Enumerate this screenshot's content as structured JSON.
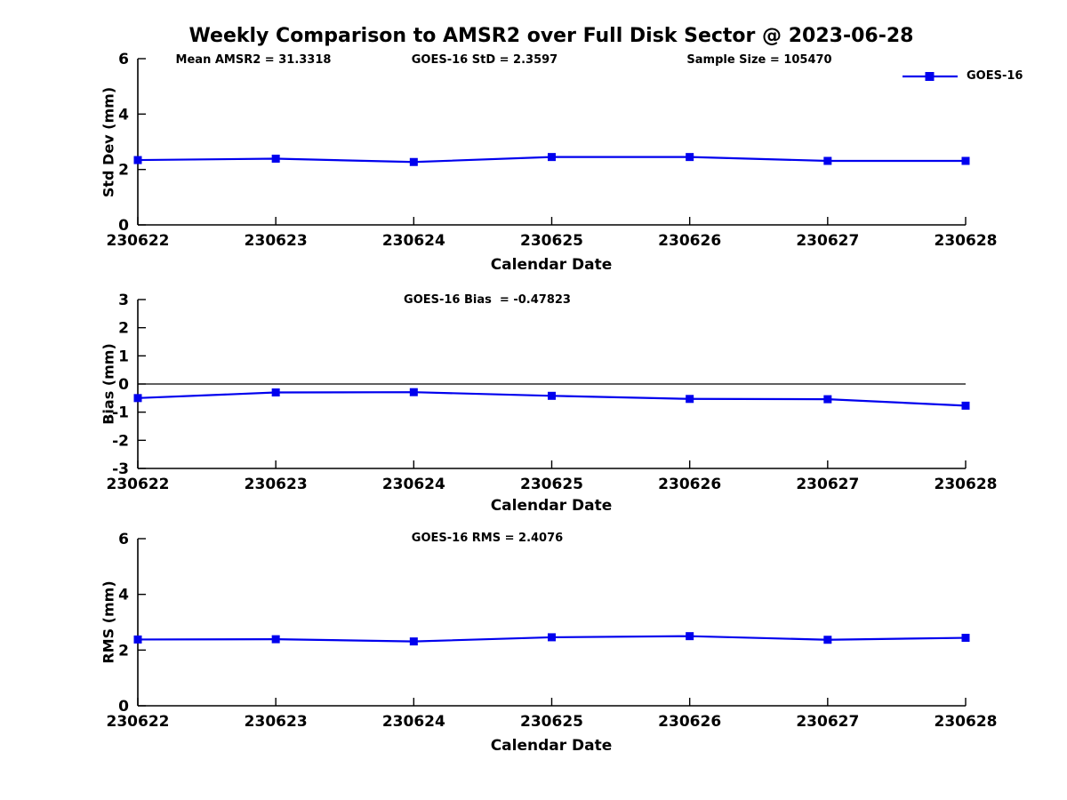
{
  "title": "Weekly Comparison to AMSR2 over Full Disk Sector @ 2023-06-28",
  "legend": {
    "label": "GOES-16",
    "position": "top-right"
  },
  "colors": {
    "line": "#0000ee",
    "axis": "#000000",
    "text": "#000000",
    "zero_line": "#000000",
    "background": "#ffffff"
  },
  "chart_data": [
    {
      "type": "line",
      "name": "std-dev-subplot",
      "annotations": [
        "Mean AMSR2 = 31.3318",
        "GOES-16 StD = 2.3597",
        "Sample Size = 105470"
      ],
      "categories": [
        "230622",
        "230623",
        "230624",
        "230625",
        "230626",
        "230627",
        "230628"
      ],
      "series": [
        {
          "name": "GOES-16",
          "values": [
            2.34,
            2.39,
            2.27,
            2.45,
            2.45,
            2.31,
            2.31
          ]
        }
      ],
      "xlabel": "Calendar Date",
      "ylabel": "Std Dev (mm)",
      "ylim": [
        0,
        6
      ],
      "yticks": [
        0,
        2,
        4,
        6
      ],
      "zero_line": false,
      "grid": false,
      "marker": "square",
      "legend_entries": [
        "GOES-16"
      ]
    },
    {
      "type": "line",
      "name": "bias-subplot",
      "annotations": [
        "GOES-16 Bias  = -0.47823"
      ],
      "categories": [
        "230622",
        "230623",
        "230624",
        "230625",
        "230626",
        "230627",
        "230628"
      ],
      "series": [
        {
          "name": "GOES-16",
          "values": [
            -0.5,
            -0.3,
            -0.29,
            -0.42,
            -0.53,
            -0.54,
            -0.77
          ]
        }
      ],
      "xlabel": "Calendar Date",
      "ylabel": "Bias (mm)",
      "ylim": [
        -3,
        3
      ],
      "yticks": [
        -3,
        -2,
        -1,
        0,
        1,
        2,
        3
      ],
      "zero_line": true,
      "grid": false,
      "marker": "square"
    },
    {
      "type": "line",
      "name": "rms-subplot",
      "annotations": [
        "GOES-16 RMS = 2.4076"
      ],
      "categories": [
        "230622",
        "230623",
        "230624",
        "230625",
        "230626",
        "230627",
        "230628"
      ],
      "series": [
        {
          "name": "GOES-16",
          "values": [
            2.38,
            2.39,
            2.31,
            2.46,
            2.5,
            2.37,
            2.44
          ]
        }
      ],
      "xlabel": "Calendar Date",
      "ylabel": "RMS (mm)",
      "ylim": [
        0,
        6
      ],
      "yticks": [
        0,
        2,
        4,
        6
      ],
      "zero_line": false,
      "grid": false,
      "marker": "square"
    }
  ]
}
